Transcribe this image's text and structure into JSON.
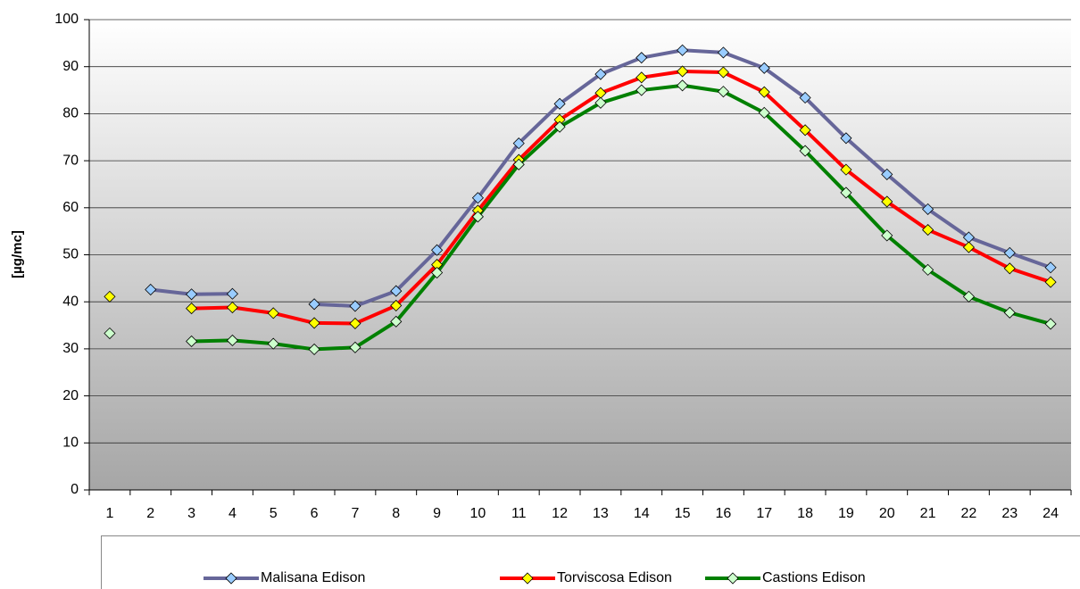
{
  "chart_data": {
    "type": "line",
    "y_label": "[µg/mc]",
    "categories": [
      "1",
      "2",
      "3",
      "4",
      "5",
      "6",
      "7",
      "8",
      "9",
      "10",
      "11",
      "12",
      "13",
      "14",
      "15",
      "16",
      "17",
      "18",
      "19",
      "20",
      "21",
      "22",
      "23",
      "24"
    ],
    "series": [
      {
        "name": "Malisana Edison",
        "color": "#666699",
        "marker_color": "#99ccff",
        "values": [
          null,
          42.6,
          41.6,
          41.7,
          null,
          39.5,
          39.1,
          42.3,
          51,
          62.1,
          73.7,
          82.1,
          88.4,
          91.9,
          93.5,
          93,
          89.7,
          83.4,
          74.8,
          67.1,
          59.7,
          53.7,
          50.4,
          47.3
        ]
      },
      {
        "name": "Torviscosa Edison",
        "color": "#ff0000",
        "marker_color": "#ffff00",
        "values": [
          41.1,
          null,
          38.6,
          38.8,
          37.6,
          35.5,
          35.4,
          39.2,
          47.9,
          59.4,
          70.2,
          78.7,
          84.4,
          87.7,
          89,
          88.8,
          84.6,
          76.5,
          68.1,
          61.3,
          55.3,
          51.6,
          47.1,
          44.2
        ]
      },
      {
        "name": "Castions Edison",
        "color": "#008000",
        "marker_color": "#ccffcc",
        "values": [
          33.3,
          null,
          31.6,
          31.8,
          31.1,
          29.9,
          30.3,
          35.8,
          46.2,
          58.1,
          69.2,
          77.2,
          82.3,
          85,
          86,
          84.7,
          80.2,
          72.1,
          63.2,
          54.1,
          46.8,
          41.1,
          37.7,
          35.3
        ]
      }
    ],
    "ylim": [
      0,
      100
    ],
    "yticks": [
      0,
      10,
      20,
      30,
      40,
      50,
      60,
      70,
      80,
      90,
      100
    ],
    "grid": true
  }
}
